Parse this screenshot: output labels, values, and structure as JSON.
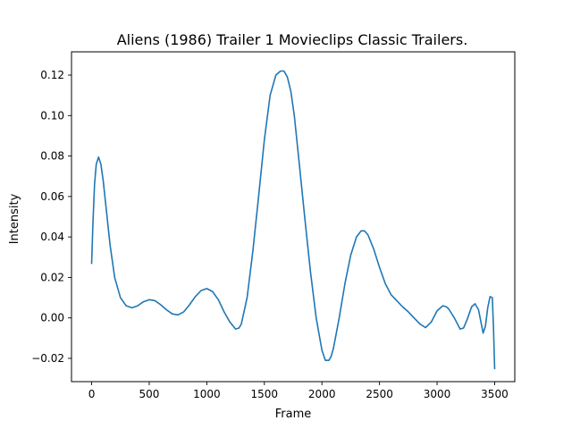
{
  "chart_data": {
    "type": "line",
    "title": "Aliens (1986) Trailer 1  Movieclips Classic Trailers.",
    "xlabel": "Frame",
    "ylabel": "Intensity",
    "xlim": [
      -175,
      3675
    ],
    "ylim": [
      -0.0315,
      0.1315
    ],
    "xticks": [
      0,
      500,
      1000,
      1500,
      2000,
      2500,
      3000,
      3500
    ],
    "xtick_labels": [
      "0",
      "500",
      "1000",
      "1500",
      "2000",
      "2500",
      "3000",
      "3500"
    ],
    "yticks": [
      -0.02,
      0.0,
      0.02,
      0.04,
      0.06,
      0.08,
      0.1,
      0.12
    ],
    "ytick_labels": [
      "−0.02",
      "0.00",
      "0.02",
      "0.04",
      "0.06",
      "0.08",
      "0.10",
      "0.12"
    ],
    "grid": false,
    "series": [
      {
        "color": "#1f77b4",
        "x": [
          0,
          10,
          25,
          40,
          60,
          80,
          100,
          130,
          160,
          200,
          250,
          300,
          350,
          400,
          450,
          500,
          550,
          600,
          650,
          700,
          750,
          800,
          850,
          900,
          950,
          1000,
          1050,
          1100,
          1150,
          1200,
          1250,
          1280,
          1300,
          1350,
          1400,
          1450,
          1500,
          1550,
          1600,
          1640,
          1670,
          1700,
          1730,
          1760,
          1800,
          1850,
          1900,
          1950,
          2000,
          2030,
          2060,
          2080,
          2100,
          2150,
          2200,
          2250,
          2300,
          2340,
          2370,
          2400,
          2450,
          2500,
          2550,
          2600,
          2650,
          2700,
          2750,
          2800,
          2850,
          2900,
          2950,
          3000,
          3050,
          3080,
          3100,
          3150,
          3200,
          3230,
          3260,
          3300,
          3330,
          3360,
          3400,
          3420,
          3440,
          3460,
          3480,
          3490,
          3500
        ],
        "y": [
          0.027,
          0.045,
          0.066,
          0.076,
          0.0795,
          0.076,
          0.068,
          0.052,
          0.036,
          0.02,
          0.01,
          0.006,
          0.005,
          0.006,
          0.008,
          0.009,
          0.0085,
          0.0065,
          0.004,
          0.002,
          0.0015,
          0.003,
          0.0065,
          0.0105,
          0.0135,
          0.0145,
          0.013,
          0.009,
          0.003,
          -0.002,
          -0.0055,
          -0.005,
          -0.003,
          0.01,
          0.033,
          0.06,
          0.088,
          0.11,
          0.12,
          0.122,
          0.122,
          0.119,
          0.112,
          0.1,
          0.078,
          0.05,
          0.023,
          0.0,
          -0.016,
          -0.021,
          -0.021,
          -0.019,
          -0.015,
          0.0,
          0.017,
          0.031,
          0.04,
          0.043,
          0.043,
          0.041,
          0.034,
          0.025,
          0.017,
          0.0115,
          0.0085,
          0.0055,
          0.003,
          0.0,
          -0.003,
          -0.0048,
          -0.002,
          0.0035,
          0.006,
          0.0055,
          0.0045,
          0.0,
          -0.0055,
          -0.005,
          -0.001,
          0.0055,
          0.007,
          0.004,
          -0.0075,
          -0.004,
          0.005,
          0.0105,
          0.01,
          -0.005,
          -0.025
        ]
      }
    ]
  }
}
